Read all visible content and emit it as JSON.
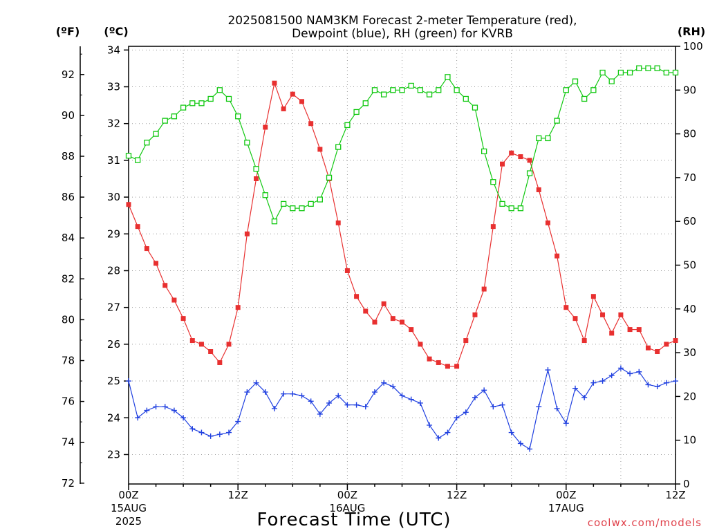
{
  "chart_data": {
    "type": "line",
    "title_line1": "2025081500 NAM3KM Forecast 2-meter Temperature (red),",
    "title_line2": "Dewpoint (blue), RH (green) for KVRB",
    "xlabel": "Forecast Time (UTC)",
    "credit": "coolwx.com/models",
    "left_unit_f": "(ºF)",
    "left_unit_c": "(ºC)",
    "right_unit": "(RH)",
    "ylim_c": [
      22.2,
      34.1
    ],
    "ylim_rh": [
      0,
      100
    ],
    "x_hours_range": [
      0,
      60
    ],
    "x_ticks": [
      {
        "hour": 0,
        "time": "00Z",
        "date": "15AUG",
        "year": "2025"
      },
      {
        "hour": 12,
        "time": "12Z",
        "date": "",
        "year": ""
      },
      {
        "hour": 24,
        "time": "00Z",
        "date": "16AUG",
        "year": ""
      },
      {
        "hour": 36,
        "time": "12Z",
        "date": "",
        "year": ""
      },
      {
        "hour": 48,
        "time": "00Z",
        "date": "17AUG",
        "year": ""
      },
      {
        "hour": 60,
        "time": "12Z",
        "date": "",
        "year": ""
      }
    ],
    "y_ticks_c": [
      23,
      24,
      25,
      26,
      27,
      28,
      29,
      30,
      31,
      32,
      33,
      34
    ],
    "y_ticks_f": [
      72,
      74,
      76,
      78,
      80,
      82,
      84,
      86,
      88,
      90,
      92
    ],
    "y_ticks_rh": [
      0,
      10,
      20,
      30,
      40,
      50,
      60,
      70,
      80,
      90,
      100
    ],
    "grid": true,
    "colors": {
      "temperature": "#e83030",
      "dewpoint": "#2040e0",
      "rh": "#10c810",
      "grid": "#999999"
    },
    "hours": [
      0,
      1,
      2,
      3,
      4,
      5,
      6,
      7,
      8,
      9,
      10,
      11,
      12,
      13,
      14,
      15,
      16,
      17,
      18,
      19,
      20,
      21,
      22,
      23,
      24,
      25,
      26,
      27,
      28,
      29,
      30,
      31,
      32,
      33,
      34,
      35,
      36,
      37,
      38,
      39,
      40,
      41,
      42,
      43,
      44,
      45,
      46,
      47,
      48,
      49,
      50,
      51,
      52,
      53,
      54,
      55,
      56,
      57,
      58,
      59,
      60
    ],
    "series": [
      {
        "name": "Temperature",
        "units": "C",
        "values": [
          29.8,
          29.2,
          28.6,
          28.2,
          27.6,
          27.2,
          26.7,
          26.1,
          26.0,
          25.8,
          25.5,
          26.0,
          27.0,
          29.0,
          30.5,
          31.9,
          33.1,
          32.4,
          32.8,
          32.6,
          32.0,
          31.3,
          30.5,
          29.3,
          28.0,
          27.3,
          26.9,
          26.6,
          27.1,
          26.7,
          26.6,
          26.4,
          26.0,
          25.6,
          25.5,
          25.4,
          25.4,
          26.1,
          26.8,
          27.5,
          29.2,
          30.9,
          31.2,
          31.1,
          31.0,
          30.2,
          29.3,
          28.4,
          27.0,
          26.7,
          26.1,
          27.3,
          26.8,
          26.3,
          26.8,
          26.4,
          26.4,
          25.9,
          25.8,
          26.0,
          26.1
        ]
      },
      {
        "name": "Dewpoint",
        "units": "C",
        "values": [
          25.0,
          24.0,
          24.2,
          24.3,
          24.3,
          24.2,
          24.0,
          23.7,
          23.6,
          23.5,
          23.55,
          23.6,
          23.9,
          24.7,
          24.95,
          24.7,
          24.25,
          24.65,
          24.65,
          24.6,
          24.45,
          24.1,
          24.4,
          24.6,
          24.35,
          24.35,
          24.3,
          24.7,
          24.95,
          24.85,
          24.6,
          24.5,
          24.4,
          23.8,
          23.45,
          23.6,
          24.0,
          24.15,
          24.55,
          24.75,
          24.3,
          24.35,
          23.6,
          23.3,
          23.15,
          24.3,
          25.3,
          24.25,
          23.85,
          24.8,
          24.55,
          24.95,
          25.0,
          25.15,
          25.35,
          25.2,
          25.25,
          24.9,
          24.85,
          24.95,
          25.0
        ]
      },
      {
        "name": "RH",
        "units": "%",
        "values": [
          75,
          74,
          78,
          80,
          83,
          84,
          86,
          87,
          87,
          88,
          90,
          88,
          84,
          78,
          72,
          66,
          60,
          64,
          63,
          63,
          64,
          65,
          70,
          77,
          82,
          85,
          87,
          90,
          89,
          90,
          90,
          91,
          90,
          89,
          90,
          93,
          90,
          88,
          86,
          76,
          69,
          64,
          63,
          63,
          71,
          79,
          79,
          83,
          90,
          92,
          88,
          90,
          94,
          92,
          94,
          94,
          95,
          95,
          95,
          94,
          94
        ]
      }
    ]
  }
}
